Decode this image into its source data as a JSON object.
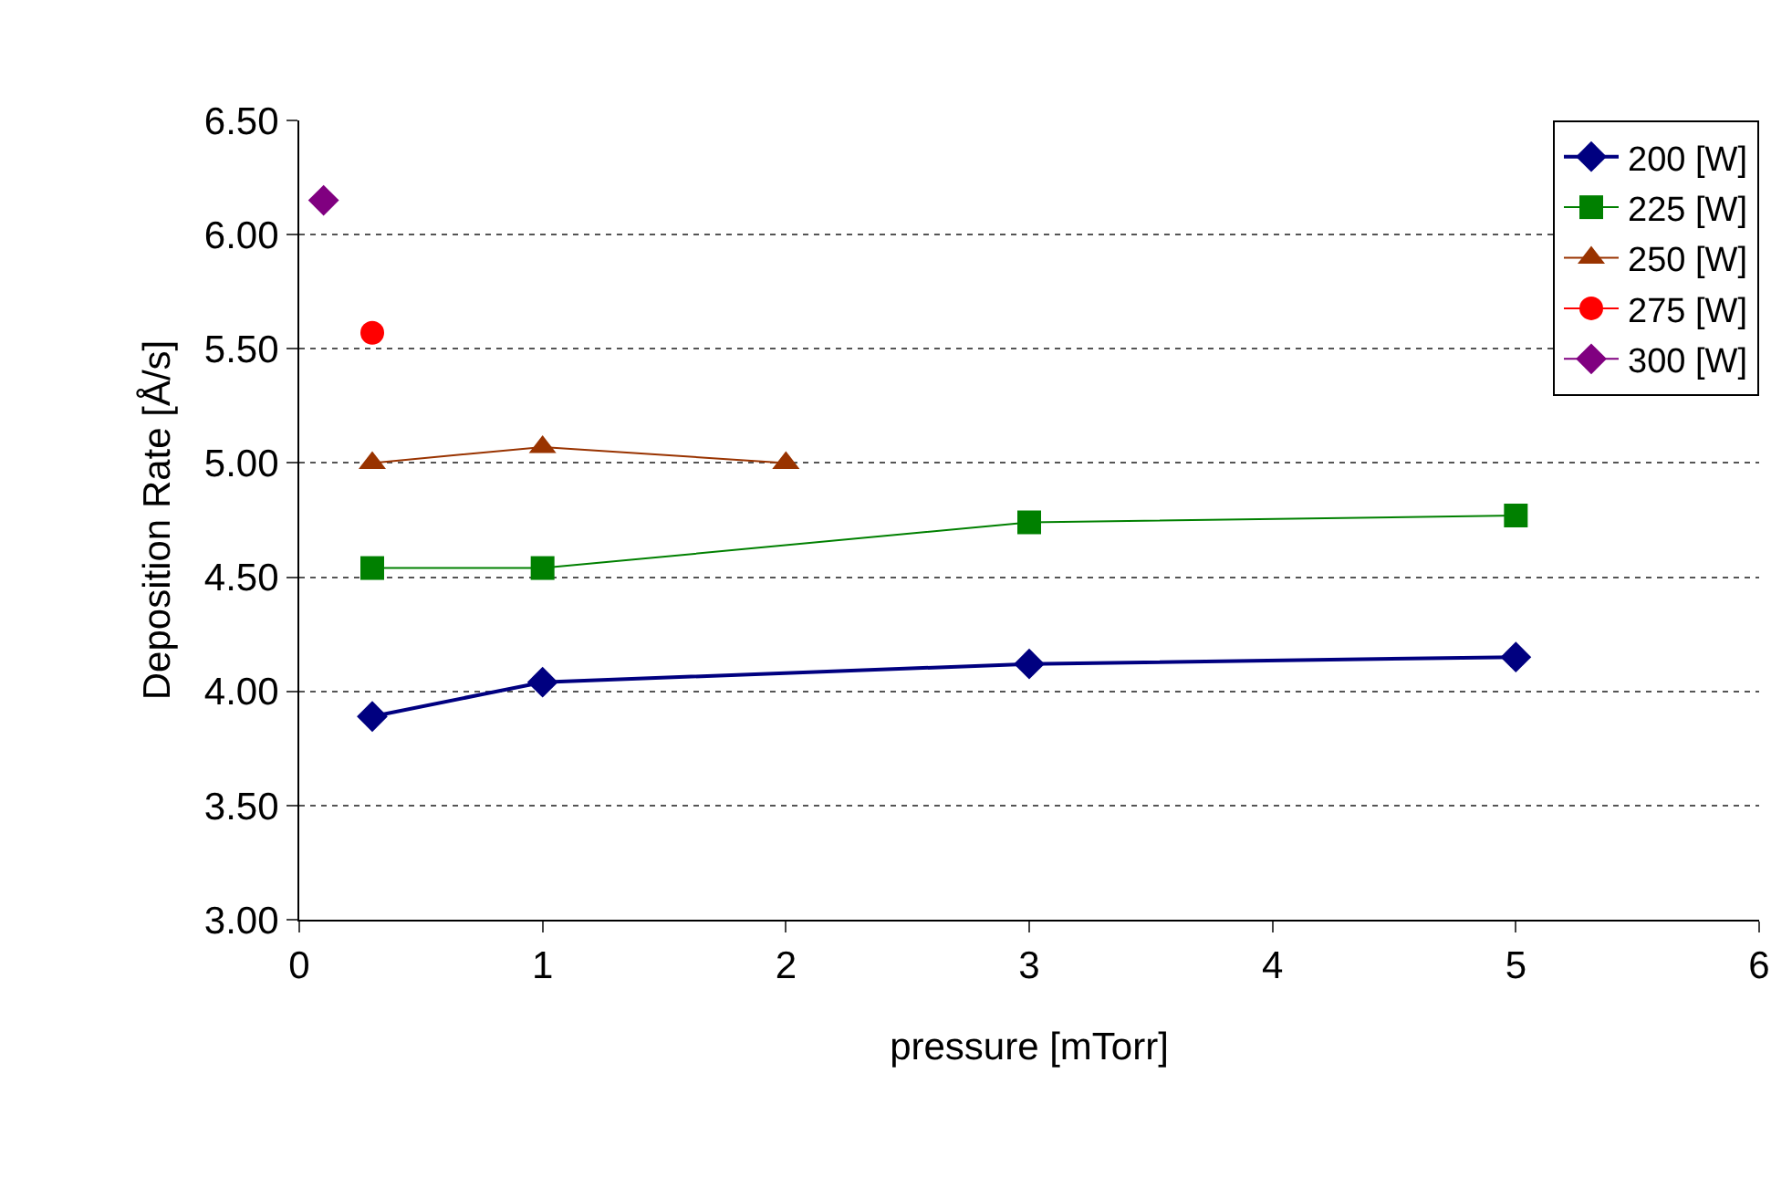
{
  "chart_data": {
    "type": "line",
    "xlabel": "pressure [mTorr]",
    "ylabel": "Deposition Rate [Å/s]",
    "xlim": [
      0,
      6
    ],
    "xticks": [
      0,
      1,
      2,
      3,
      4,
      5,
      6
    ],
    "ylim": [
      3,
      6.5
    ],
    "yticks": [
      {
        "value": 3,
        "label": "3.00"
      },
      {
        "value": 3.5,
        "label": "3.50"
      },
      {
        "value": 4,
        "label": "4.00"
      },
      {
        "value": 4.5,
        "label": "4.50"
      },
      {
        "value": 5,
        "label": "5.00"
      },
      {
        "value": 5.5,
        "label": "5.50"
      },
      {
        "value": 6,
        "label": "6.00"
      },
      {
        "value": 6.5,
        "label": "6.50"
      }
    ],
    "grid": "y",
    "legend": "top right",
    "line_style": "solid",
    "series": [
      {
        "name": "200 [W]",
        "color": "#000080",
        "marker": "diamond",
        "x": [
          0.3,
          1,
          3,
          5
        ],
        "values": [
          3.89,
          4.04,
          4.12,
          4.15
        ]
      },
      {
        "name": "225 [W]",
        "color": "#008000",
        "marker": "square",
        "x": [
          0.3,
          1,
          3,
          5
        ],
        "values": [
          4.54,
          4.54,
          4.74,
          4.77
        ]
      },
      {
        "name": "250 [W]",
        "color": "#993300",
        "marker": "triangle",
        "x": [
          0.3,
          1,
          2
        ],
        "values": [
          5.0,
          5.07,
          5.0
        ]
      },
      {
        "name": "275 [W]",
        "color": "#ff0000",
        "marker": "circle",
        "x": [
          0.3
        ],
        "values": [
          5.57
        ]
      },
      {
        "name": "300 [W]",
        "color": "#800080",
        "marker": "diamond",
        "x": [
          0.1
        ],
        "values": [
          6.15
        ]
      }
    ]
  }
}
